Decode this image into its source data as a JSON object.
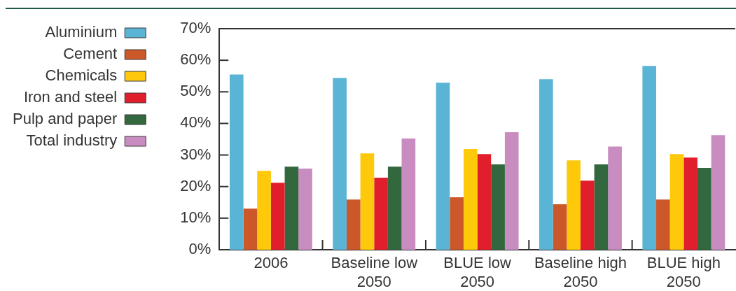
{
  "chart_data": {
    "type": "bar",
    "categories": [
      "2006",
      "Baseline low 2050",
      "BLUE low 2050",
      "Baseline high 2050",
      "BLUE high 2050"
    ],
    "series": [
      {
        "name": "Aluminium",
        "color": "#5ab4d6",
        "values": [
          55.5,
          54.4,
          52.9,
          54.0,
          58.2
        ]
      },
      {
        "name": "Cement",
        "color": "#cc5829",
        "values": [
          13.0,
          15.9,
          16.6,
          14.4,
          15.9
        ]
      },
      {
        "name": "Chemicals",
        "color": "#fec90b",
        "values": [
          25.0,
          30.5,
          31.9,
          28.3,
          30.3
        ]
      },
      {
        "name": "Iron and steel",
        "color": "#e11f2c",
        "values": [
          21.2,
          22.8,
          30.3,
          21.9,
          29.2
        ]
      },
      {
        "name": "Pulp and paper",
        "color": "#33673e",
        "values": [
          26.3,
          26.3,
          27.0,
          27.0,
          25.9
        ]
      },
      {
        "name": "Total industry",
        "color": "#c88cc0",
        "values": [
          25.7,
          35.2,
          37.2,
          32.7,
          36.3
        ]
      }
    ],
    "ylim": [
      0,
      70
    ],
    "yticks": [
      {
        "value": 0,
        "label": "0%"
      },
      {
        "value": 10,
        "label": "10%"
      },
      {
        "value": 20,
        "label": "20%"
      },
      {
        "value": 30,
        "label": "30%"
      },
      {
        "value": 40,
        "label": "40%"
      },
      {
        "value": 50,
        "label": "50%"
      },
      {
        "value": 60,
        "label": "60%"
      },
      {
        "value": 70,
        "label": "70%"
      }
    ],
    "legend": "left"
  }
}
